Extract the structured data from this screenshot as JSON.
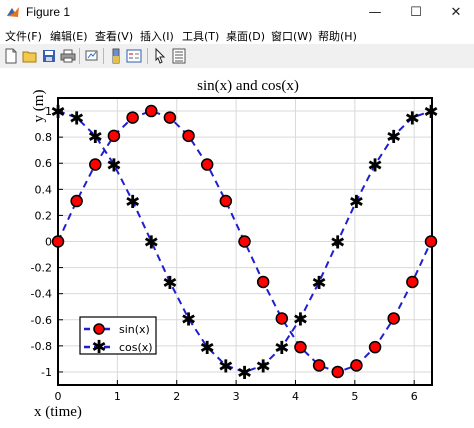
{
  "window": {
    "title": "Figure 1"
  },
  "controls": {
    "minimize": "—",
    "maximize": "☐",
    "close": "✕"
  },
  "menu": [
    {
      "label": "文件(F)"
    },
    {
      "label": "编辑(E)"
    },
    {
      "label": "查看(V)"
    },
    {
      "label": "插入(I)"
    },
    {
      "label": "工具(T)"
    },
    {
      "label": "桌面(D)"
    },
    {
      "label": "窗口(W)"
    },
    {
      "label": "帮助(H)"
    }
  ],
  "toolbar": {
    "icons": [
      "new-figure-icon",
      "open-file-icon",
      "save-icon",
      "print-icon",
      "link-plot-icon",
      "insert-colorbar-icon",
      "insert-legend-icon",
      "edit-plot-icon",
      "property-inspector-icon"
    ]
  },
  "colors": {
    "line": "#1f1fd0",
    "marker_fill": "#ff0000",
    "axes_bg": "#ffffff",
    "grid": "#d9d9d9"
  },
  "chart_data": {
    "type": "line",
    "title": "sin(x) and cos(x)",
    "xlabel": "x (time)",
    "ylabel": "y (m)",
    "xlim": [
      0,
      6.3
    ],
    "ylim": [
      -1.1,
      1.1
    ],
    "xticks": [
      0,
      1,
      2,
      3,
      4,
      5,
      6
    ],
    "xticklabels": [
      "0",
      "1",
      "2",
      "3",
      "4",
      "5",
      "6"
    ],
    "yticks": [
      -1,
      -0.8,
      -0.6,
      -0.4,
      -0.2,
      0,
      0.2,
      0.4,
      0.6,
      0.8,
      1
    ],
    "yticklabels": [
      "-1",
      "-0.8",
      "-0.6",
      "-0.4",
      "-0.2",
      "0",
      "0.2",
      "0.4",
      "0.6",
      "0.8",
      "1"
    ],
    "grid": true,
    "legend_position": "lower-left",
    "x": [
      0,
      0.314,
      0.628,
      0.942,
      1.257,
      1.571,
      1.885,
      2.199,
      2.513,
      2.827,
      3.142,
      3.456,
      3.77,
      4.084,
      4.398,
      4.712,
      5.027,
      5.341,
      5.655,
      5.969,
      6.283
    ],
    "series": [
      {
        "name": "sin(x)",
        "marker": "o",
        "line": "dashed",
        "values": [
          0,
          0.31,
          0.59,
          0.81,
          0.95,
          1.0,
          0.95,
          0.81,
          0.59,
          0.31,
          0,
          -0.31,
          -0.59,
          -0.81,
          -0.95,
          -1.0,
          -0.95,
          -0.81,
          -0.59,
          -0.31,
          0
        ]
      },
      {
        "name": "cos(x)",
        "marker": "*",
        "line": "dashed",
        "values": [
          1.0,
          0.95,
          0.81,
          0.59,
          0.31,
          0,
          -0.31,
          -0.59,
          -0.81,
          -0.95,
          -1.0,
          -0.95,
          -0.81,
          -0.59,
          -0.31,
          0,
          0.31,
          0.59,
          0.81,
          0.95,
          1.0
        ]
      }
    ]
  }
}
